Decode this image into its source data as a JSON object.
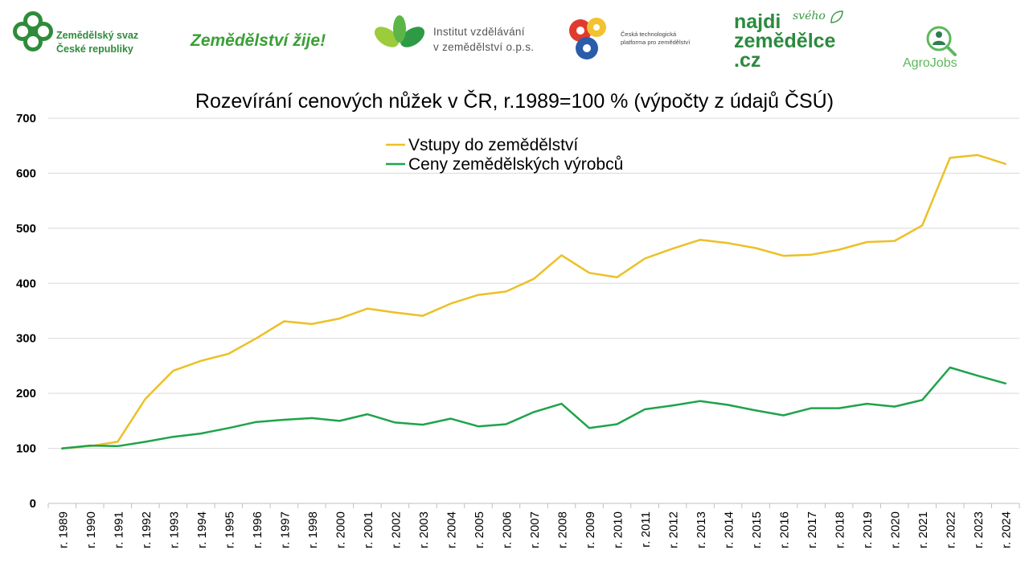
{
  "logos": {
    "svaz_line1": "Zemědělský svaz",
    "svaz_line2": "České republiky",
    "zije": "Zemědělství žije!",
    "institut_line1": "Institut vzdělávání",
    "institut_line2": "v zemědělství o.p.s.",
    "ctp_line1": "Česká technologická",
    "ctp_line2": "platforma pro zemědělství",
    "najdi_line1": "najdi",
    "najdi_sveho": "svého",
    "najdi_line2": "zemědělce",
    "najdi_line3": ".cz",
    "agrojobs_a": "Agro",
    "agrojobs_b": "Jobs"
  },
  "colors": {
    "inputs": "#ecc027",
    "prices": "#1fa34a",
    "grid": "#d9d9d9",
    "text": "#000000"
  },
  "chart_data": {
    "type": "line",
    "title": "Rozevírání cenových nůžek v ČR, r.1989=100 % (výpočty z údajů ČSÚ)",
    "xlabel": "",
    "ylabel": "",
    "ylim": [
      0,
      700
    ],
    "yticks": [
      0,
      100,
      200,
      300,
      400,
      500,
      600,
      700
    ],
    "grid": true,
    "legend_position": "top-center",
    "categories": [
      "r. 1989",
      "r. 1990",
      "r. 1991",
      "r. 1992",
      "r. 1993",
      "r. 1994",
      "r. 1995",
      "r. 1996",
      "r. 1997",
      "r. 1998",
      "r. 2000",
      "r. 2001",
      "r. 2002",
      "r. 2003",
      "r. 2004",
      "r. 2005",
      "r. 2006",
      "r. 2007",
      "r. 2008",
      "r. 2009",
      "r. 2010",
      "r. 2011",
      "r. 2012",
      "r. 2013",
      "r. 2014",
      "r. 2015",
      "r. 2016",
      "r. 2017",
      "r. 2018",
      "r. 2019",
      "r. 2020",
      "r. 2021",
      "r. 2022",
      "r. 2023",
      "r. 2024"
    ],
    "series": [
      {
        "name": "Vstupy do zemědělství",
        "color": "#ecc027",
        "values": [
          100,
          104,
          112,
          190,
          241,
          259,
          272,
          300,
          331,
          326,
          336,
          354,
          347,
          341,
          363,
          379,
          385,
          408,
          451,
          419,
          411,
          445,
          463,
          479,
          473,
          464,
          450,
          452,
          461,
          475,
          477,
          505,
          628,
          633,
          617
        ]
      },
      {
        "name": "Ceny zemědělských výrobců",
        "color": "#1fa34a",
        "values": [
          100,
          105,
          104,
          112,
          121,
          127,
          137,
          148,
          152,
          155,
          150,
          162,
          147,
          143,
          154,
          140,
          144,
          166,
          181,
          137,
          144,
          171,
          178,
          186,
          179,
          169,
          160,
          173,
          173,
          181,
          176,
          188,
          247,
          232,
          218
        ]
      }
    ]
  }
}
